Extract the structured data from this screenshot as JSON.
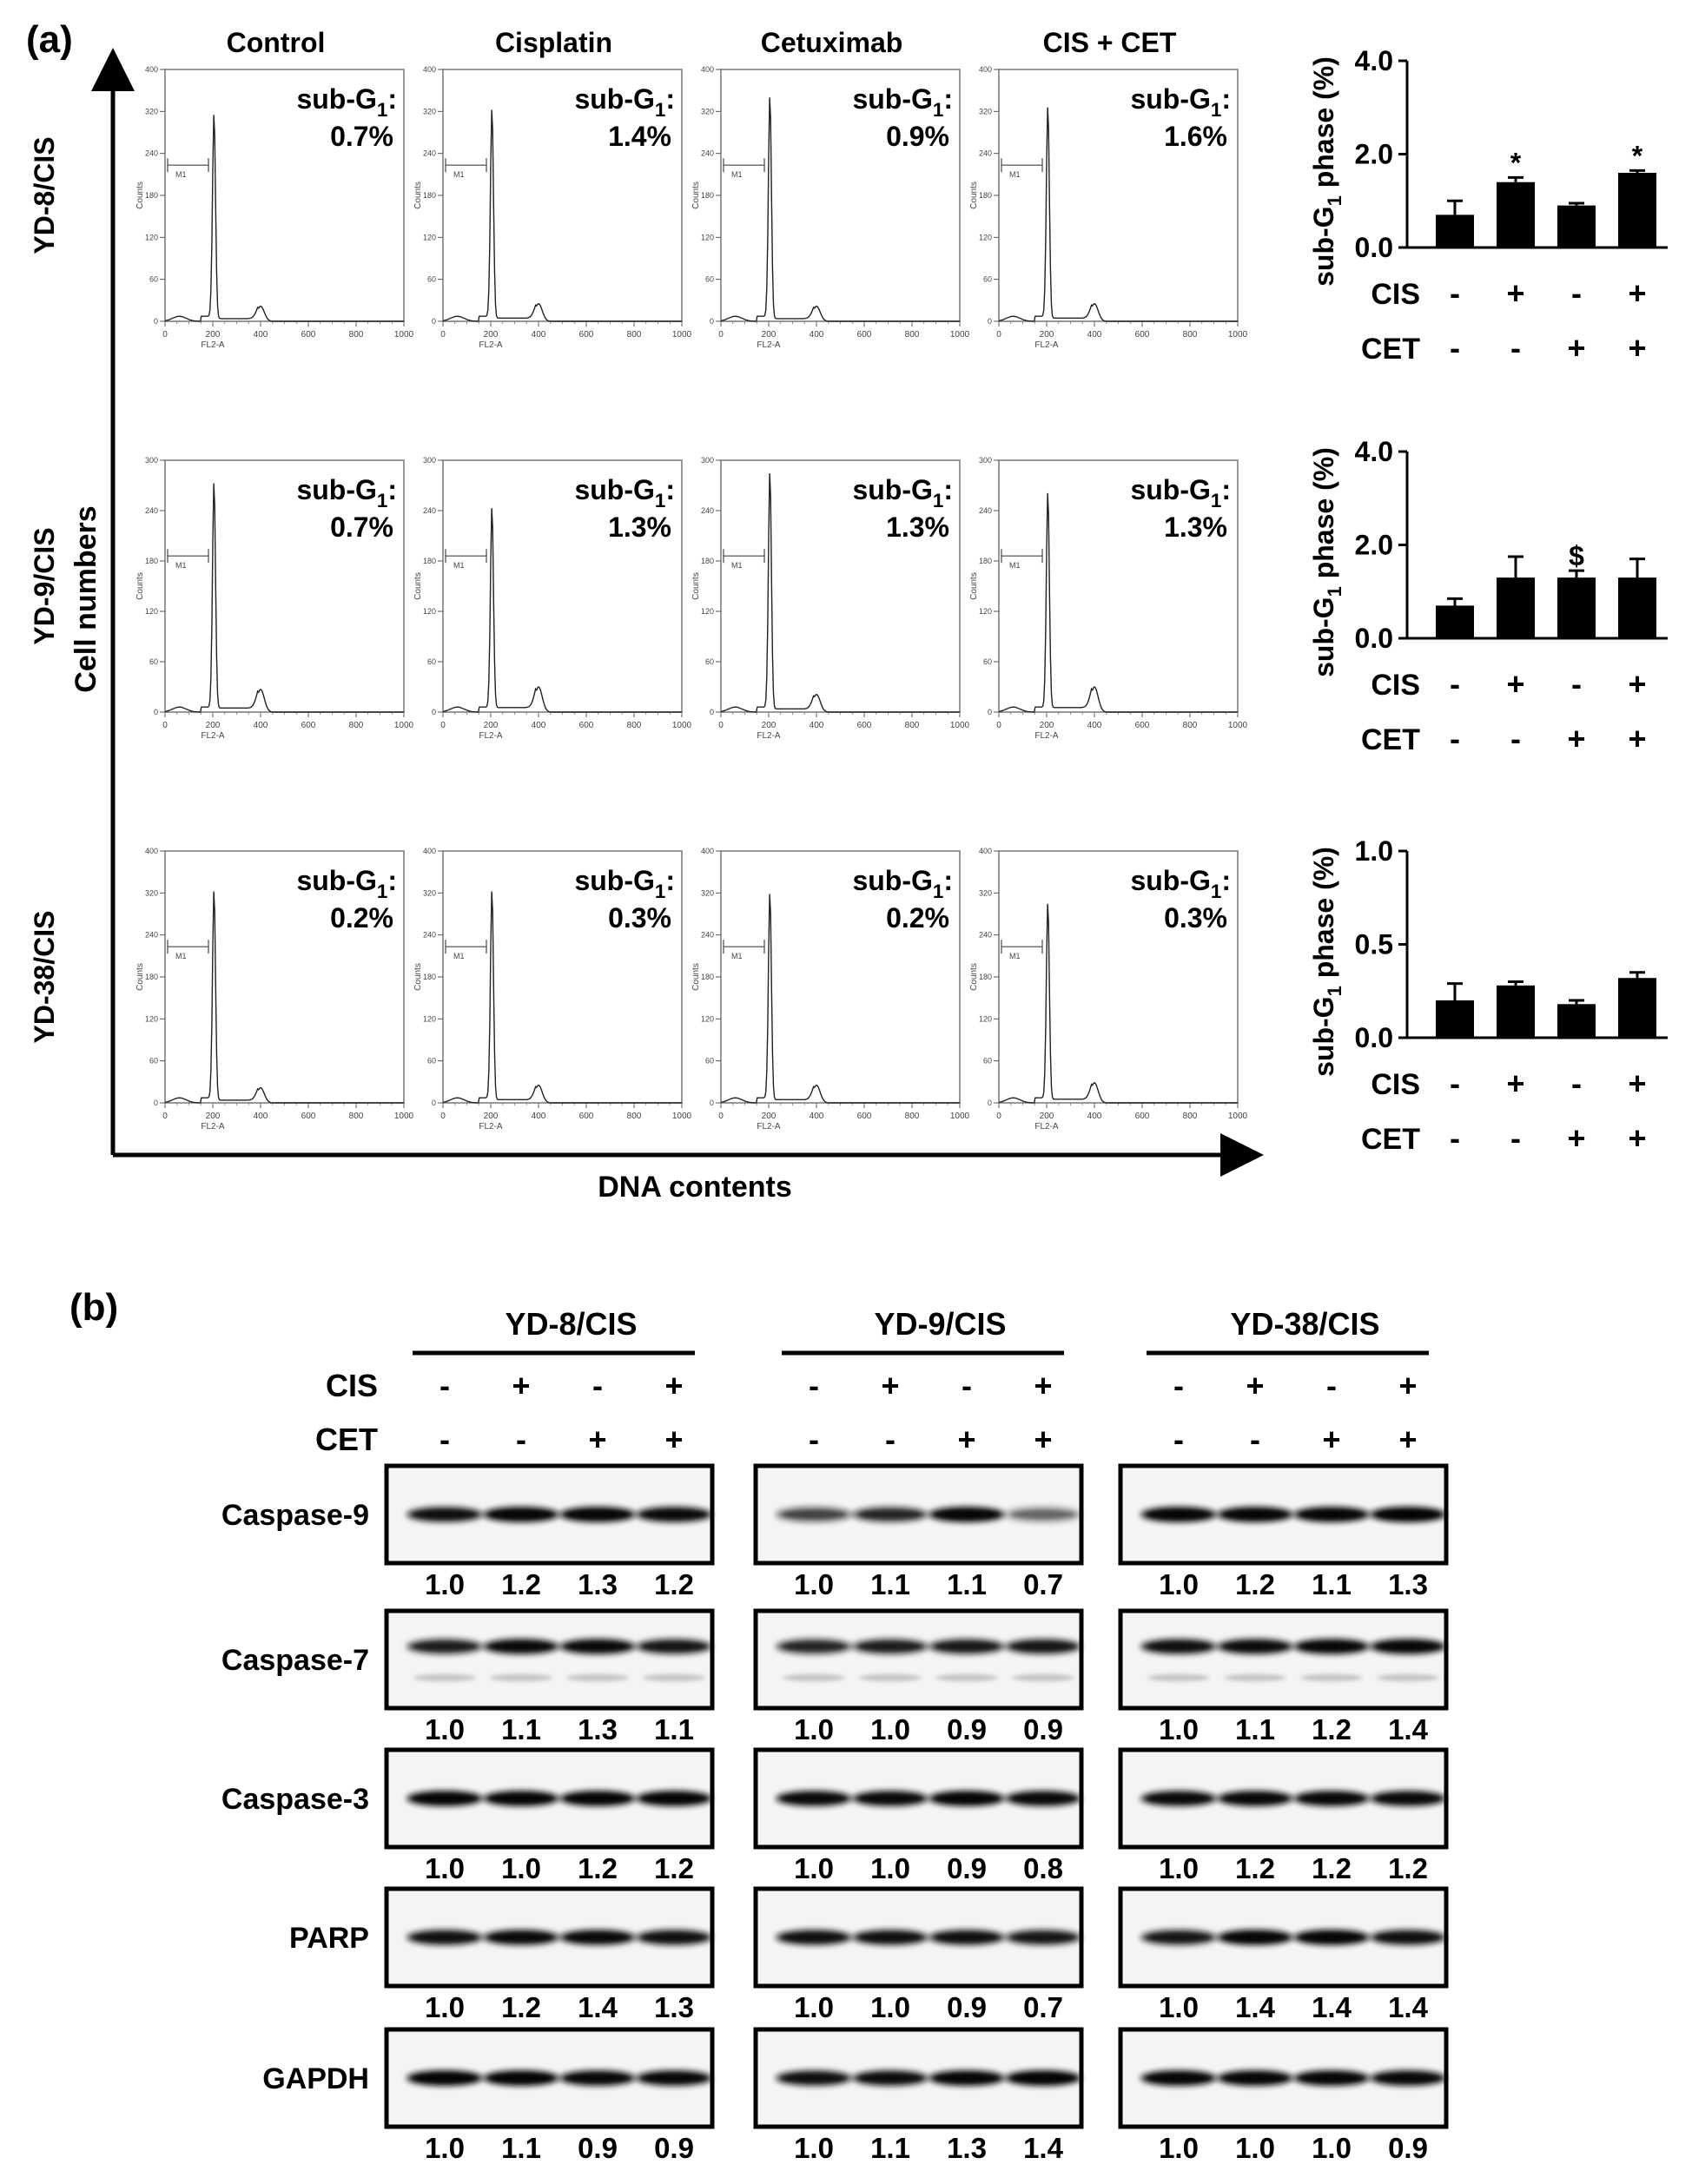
{
  "panel_a": {
    "label": "(a)",
    "conditions": [
      "Control",
      "Cisplatin",
      "Cetuximab",
      "CIS + CET"
    ],
    "cell_lines": [
      "YD-8/CIS",
      "YD-9/CIS",
      "YD-38/CIS"
    ],
    "y_axis_label": "Cell numbers",
    "x_axis_label": "DNA contents",
    "histogram_axis": {
      "x_title": "FL2-A",
      "y_title": "Counts",
      "marker": "M1",
      "x_ticks": [
        "0",
        "200",
        "400",
        "600",
        "800",
        "1000"
      ]
    },
    "histogram_y_ticks": [
      [
        "0",
        "60",
        "120",
        "180",
        "240",
        "320",
        "400"
      ],
      [
        "0",
        "60",
        "120",
        "180",
        "240",
        "300"
      ],
      [
        "0",
        "60",
        "120",
        "180",
        "240",
        "320",
        "400"
      ]
    ],
    "subg1_label": "sub-G",
    "subg1_sub": "1",
    "subg1_colon": ":",
    "subg1_values": [
      [
        "0.7%",
        "1.4%",
        "0.9%",
        "1.6%"
      ],
      [
        "0.7%",
        "1.3%",
        "1.3%",
        "1.3%"
      ],
      [
        "0.2%",
        "0.3%",
        "0.2%",
        "0.3%"
      ]
    ]
  },
  "chart_data": [
    {
      "type": "bar",
      "title": "YD-8/CIS",
      "categories": [
        "- / -",
        "+ / -",
        "- / +",
        "+ / +"
      ],
      "values": [
        0.7,
        1.4,
        0.9,
        1.6
      ],
      "errors": [
        0.3,
        0.1,
        0.05,
        0.05
      ],
      "annotations": [
        "",
        "*",
        "",
        "*"
      ],
      "ylabel": "sub-G1 phase (%)",
      "ylim": [
        0,
        4.0
      ],
      "yticks": [
        "0.0",
        "2.0",
        "4.0"
      ],
      "cis": [
        "-",
        "+",
        "-",
        "+"
      ],
      "cet": [
        "-",
        "-",
        "+",
        "+"
      ]
    },
    {
      "type": "bar",
      "title": "YD-9/CIS",
      "categories": [
        "- / -",
        "+ / -",
        "- / +",
        "+ / +"
      ],
      "values": [
        0.7,
        1.3,
        1.3,
        1.3
      ],
      "errors": [
        0.15,
        0.45,
        0.15,
        0.4
      ],
      "annotations": [
        "",
        "",
        "$",
        ""
      ],
      "ylabel": "sub-G1 phase (%)",
      "ylim": [
        0,
        4.0
      ],
      "yticks": [
        "0.0",
        "2.0",
        "4.0"
      ],
      "cis": [
        "-",
        "+",
        "-",
        "+"
      ],
      "cet": [
        "-",
        "-",
        "+",
        "+"
      ]
    },
    {
      "type": "bar",
      "title": "YD-38/CIS",
      "categories": [
        "- / -",
        "+ / -",
        "- / +",
        "+ / +"
      ],
      "values": [
        0.2,
        0.28,
        0.18,
        0.32
      ],
      "errors": [
        0.09,
        0.02,
        0.02,
        0.03
      ],
      "annotations": [
        "",
        "",
        "",
        ""
      ],
      "ylabel": "sub-G1 phase (%)",
      "ylim": [
        0,
        1.0
      ],
      "yticks": [
        "0.0",
        "0.5",
        "1.0"
      ],
      "cis": [
        "-",
        "+",
        "-",
        "+"
      ],
      "cet": [
        "-",
        "-",
        "+",
        "+"
      ]
    }
  ],
  "bar_labels": {
    "cis": "CIS",
    "cet": "CET",
    "ylabel_main": "sub-G",
    "ylabel_sub": "1",
    "ylabel_tail": " phase (%)"
  },
  "panel_b": {
    "label": "(b)",
    "cis_label": "CIS",
    "cet_label": "CET",
    "cis": [
      "-",
      "+",
      "-",
      "+"
    ],
    "cet": [
      "-",
      "-",
      "+",
      "+"
    ],
    "groups": [
      "YD-8/CIS",
      "YD-9/CIS",
      "YD-38/CIS"
    ],
    "proteins": [
      "Caspase-9",
      "Caspase-7",
      "Caspase-3",
      "PARP",
      "GAPDH"
    ],
    "band_values": [
      [
        [
          "1.0",
          "1.2",
          "1.3",
          "1.2"
        ],
        [
          "1.0",
          "1.1",
          "1.1",
          "0.7"
        ],
        [
          "1.0",
          "1.2",
          "1.1",
          "1.3"
        ]
      ],
      [
        [
          "1.0",
          "1.1",
          "1.3",
          "1.1"
        ],
        [
          "1.0",
          "1.0",
          "0.9",
          "0.9"
        ],
        [
          "1.0",
          "1.1",
          "1.2",
          "1.4"
        ]
      ],
      [
        [
          "1.0",
          "1.0",
          "1.2",
          "1.2"
        ],
        [
          "1.0",
          "1.0",
          "0.9",
          "0.8"
        ],
        [
          "1.0",
          "1.2",
          "1.2",
          "1.2"
        ]
      ],
      [
        [
          "1.0",
          "1.2",
          "1.4",
          "1.3"
        ],
        [
          "1.0",
          "1.0",
          "0.9",
          "0.7"
        ],
        [
          "1.0",
          "1.4",
          "1.4",
          "1.4"
        ]
      ],
      [
        [
          "1.0",
          "1.1",
          "0.9",
          "0.9"
        ],
        [
          "1.0",
          "1.1",
          "1.3",
          "1.4"
        ],
        [
          "1.0",
          "1.0",
          "1.0",
          "0.9"
        ]
      ]
    ]
  }
}
